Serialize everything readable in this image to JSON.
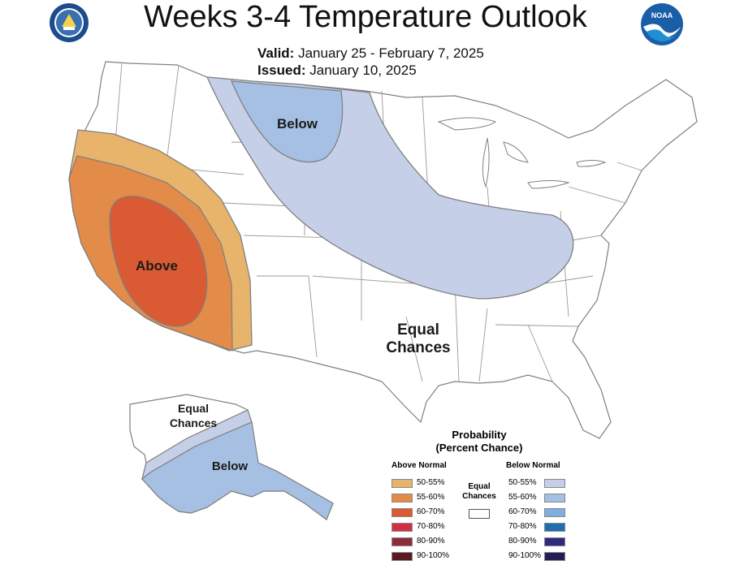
{
  "header": {
    "title": "Weeks 3-4 Temperature Outlook",
    "valid_label": "Valid:",
    "valid_value": "January 25 - February 7, 2025",
    "issued_label": "Issued:",
    "issued_value": "January 10, 2025",
    "left_logo": "department-of-commerce-seal",
    "right_logo": "noaa-logo",
    "right_logo_text": "NOAA"
  },
  "map_labels": {
    "above": "Above",
    "below_conus": "Below",
    "equal_conus_1": "Equal",
    "equal_conus_2": "Chances",
    "equal_ak_1": "Equal",
    "equal_ak_2": "Chances",
    "below_ak": "Below"
  },
  "colors": {
    "above_50_55": "#e8b36b",
    "above_55_60": "#e38c4a",
    "above_60_70": "#d95a33",
    "above_70_80": "#d02f44",
    "above_80_90": "#8e2c38",
    "above_90_100": "#5a1a22",
    "below_50_55": "#c5cfe8",
    "below_55_60": "#a5c0e3",
    "below_60_70": "#7faedf",
    "below_70_80": "#1d6fb0",
    "below_80_90": "#2f2a7e",
    "below_90_100": "#231f54",
    "border": "#808080"
  },
  "legend": {
    "title_1": "Probability",
    "title_2": "(Percent Chance)",
    "above_header": "Above Normal",
    "below_header": "Below Normal",
    "equal_label_1": "Equal",
    "equal_label_2": "Chances",
    "above_items": [
      "50-55%",
      "55-60%",
      "60-70%",
      "70-80%",
      "80-90%",
      "90-100%"
    ],
    "below_items": [
      "50-55%",
      "55-60%",
      "60-70%",
      "70-80%",
      "80-90%",
      "90-100%"
    ]
  }
}
